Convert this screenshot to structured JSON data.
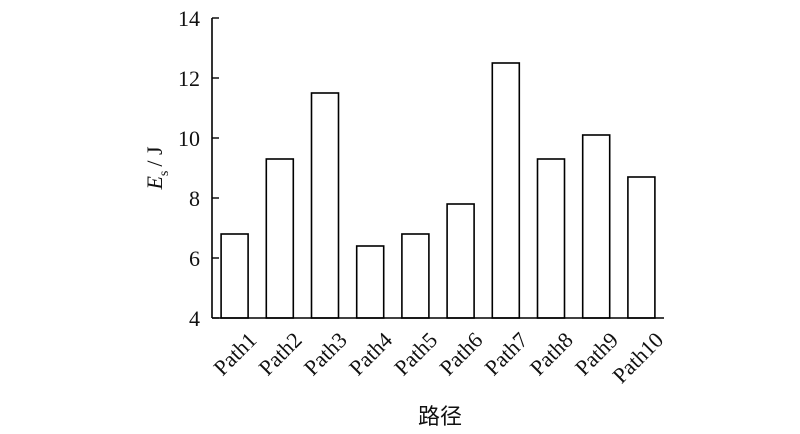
{
  "chart_data": {
    "type": "bar",
    "categories": [
      "Path1",
      "Path2",
      "Path3",
      "Path4",
      "Path5",
      "Path6",
      "Path7",
      "Path8",
      "Path9",
      "Path10"
    ],
    "values": [
      6.8,
      9.3,
      11.5,
      6.4,
      6.8,
      7.8,
      12.5,
      9.3,
      10.1,
      8.7
    ],
    "ylim": [
      4,
      14
    ],
    "yticks": [
      4,
      6,
      8,
      10,
      12,
      14
    ],
    "ylabel": {
      "main": "E",
      "subscript": "s",
      "unit": "/ J"
    },
    "xlabel": "路径",
    "grid": false,
    "bar_fill": "#ffffff",
    "bar_stroke": "#000000"
  }
}
